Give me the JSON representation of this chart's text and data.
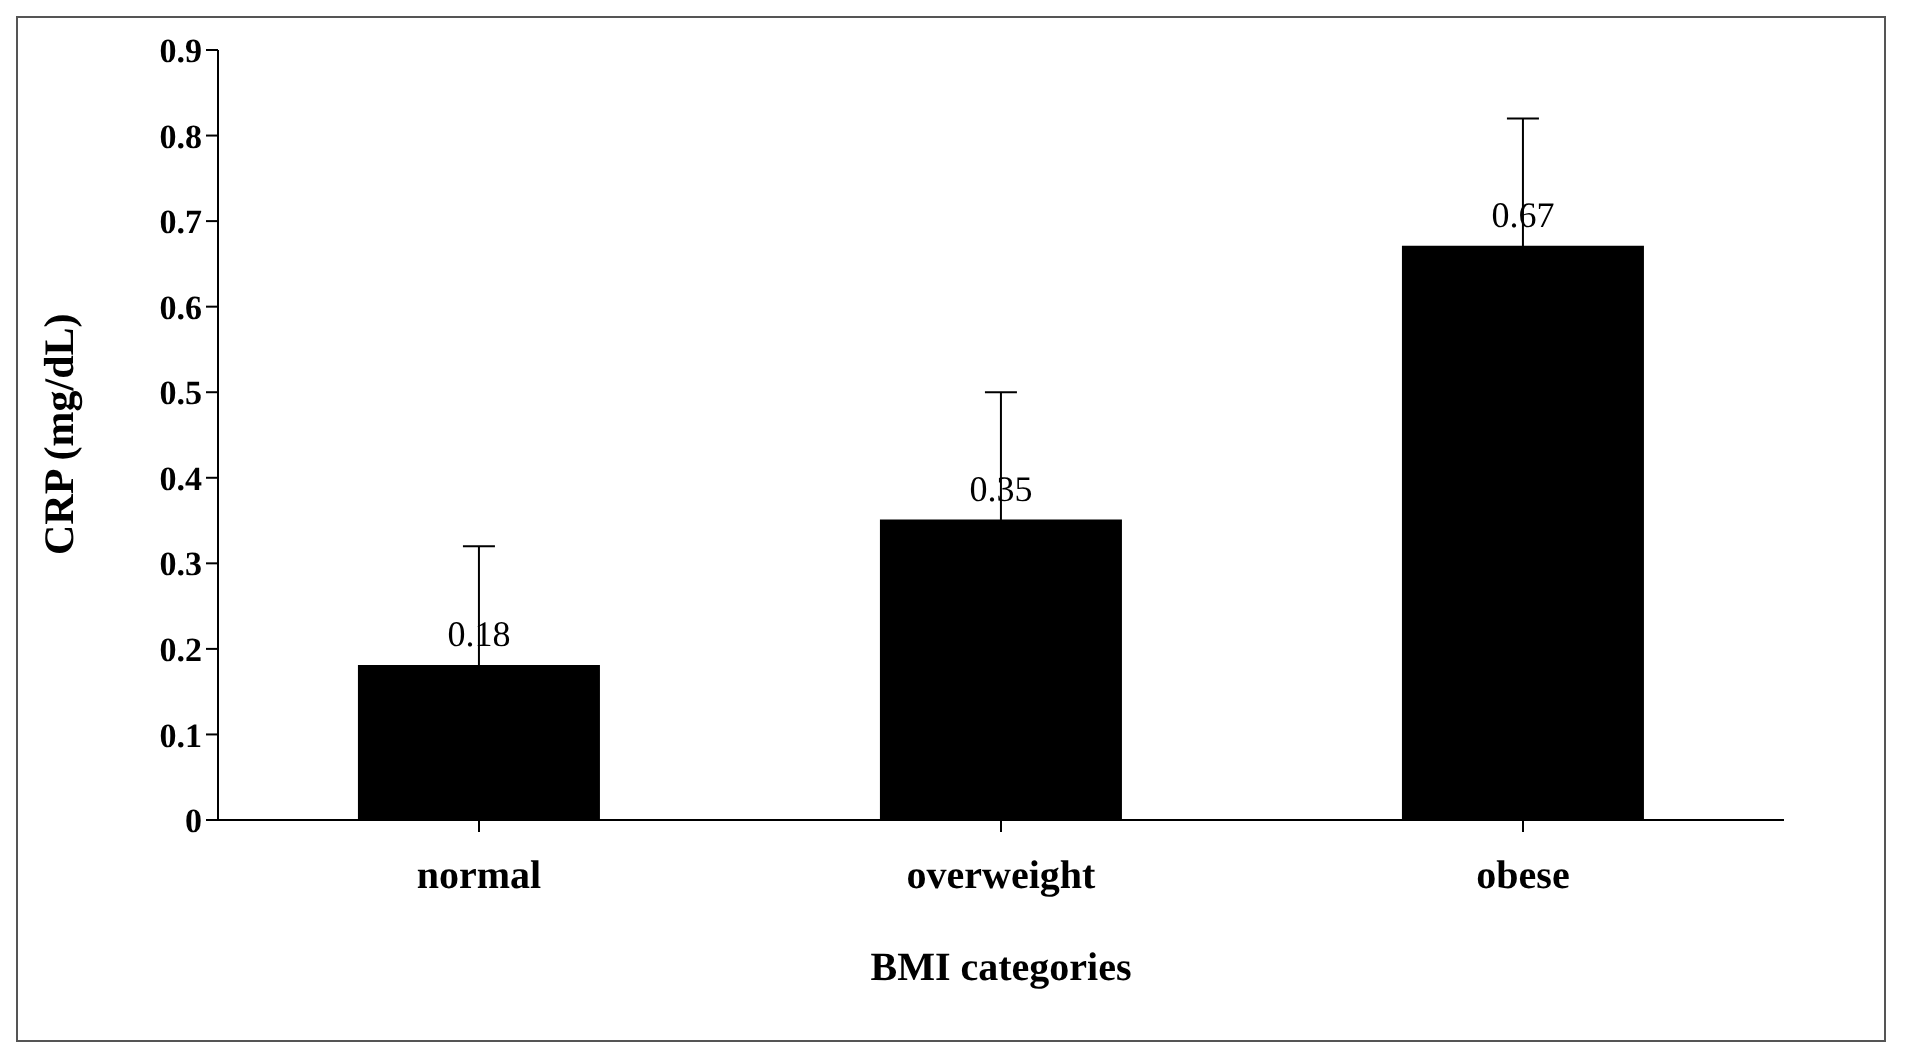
{
  "chart_data": {
    "type": "bar",
    "xlabel": "BMI categories",
    "ylabel": "CRP (mg/dL)",
    "categories": [
      "normal",
      "overweight",
      "obese"
    ],
    "values": [
      0.18,
      0.35,
      0.67
    ],
    "errors": [
      0.14,
      0.15,
      0.15
    ],
    "color": "#000000",
    "data_labels": true,
    "ylim": [
      0,
      0.9
    ],
    "yticks": [
      0,
      0.1,
      0.2,
      0.3,
      0.4,
      0.5,
      0.6,
      0.7,
      0.8,
      0.9
    ],
    "grid": false,
    "legend": false
  }
}
